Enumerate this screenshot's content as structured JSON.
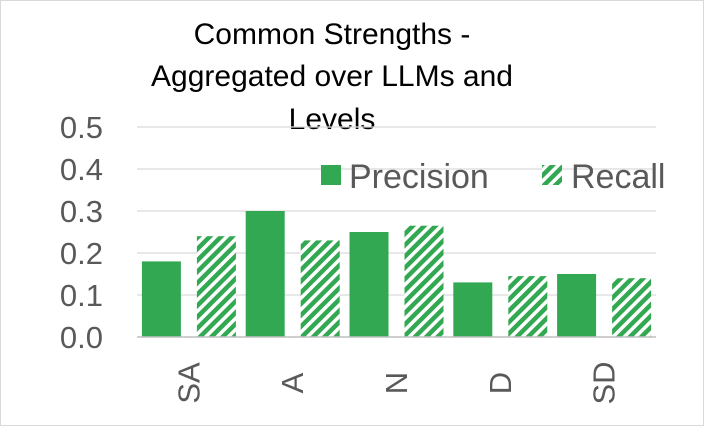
{
  "chart_data": {
    "type": "bar",
    "title_lines": [
      "Common Strengths -",
      "Aggregated over LLMs and",
      "Levels"
    ],
    "categories": [
      "SA",
      "A",
      "N",
      "D",
      "SD"
    ],
    "series": [
      {
        "name": "Precision",
        "values": [
          0.18,
          0.3,
          0.25,
          0.13,
          0.15
        ],
        "color": "#33a852",
        "pattern": "solid"
      },
      {
        "name": "Recall",
        "values": [
          0.24,
          0.23,
          0.265,
          0.145,
          0.14
        ],
        "color": "#33a852",
        "pattern": "diagonal-stripes"
      }
    ],
    "y_ticks": [
      "0.0",
      "0.1",
      "0.2",
      "0.3",
      "0.4",
      "0.5"
    ],
    "ylim": [
      0,
      0.5
    ],
    "grid": true,
    "legend_position": "top-right"
  }
}
